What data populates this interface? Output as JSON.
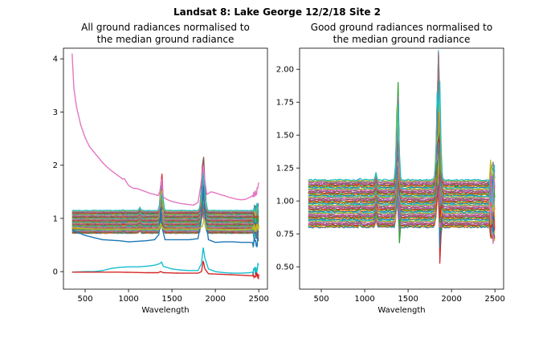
{
  "figure": {
    "suptitle": "Landsat 8: Lake George 12/2/18 Site 2"
  },
  "chart_data": [
    {
      "type": "line",
      "title_line1": "All ground radiances normalised to",
      "title_line2": "the median ground radiance",
      "xlabel": "Wavelength",
      "ylabel": "",
      "xlim": [
        250,
        2600
      ],
      "ylim": [
        -0.33,
        4.2
      ],
      "xticks": [
        500,
        1000,
        1500,
        2000,
        2500
      ],
      "yticks": [
        0,
        1,
        2,
        3,
        4
      ],
      "grid": false,
      "series_note_many_overlapping_spectra": true,
      "series": [
        {
          "color": "#e377c2",
          "x": [
            350,
            370,
            400,
            450,
            500,
            550,
            600,
            650,
            700,
            750,
            800,
            850,
            900,
            930,
            950,
            1000,
            1050,
            1100,
            1150,
            1200,
            1250,
            1300,
            1340,
            1360,
            1380,
            1400,
            1450,
            1500,
            1550,
            1600,
            1650,
            1700,
            1750,
            1800,
            1830,
            1860,
            1880,
            1900,
            1950,
            2000,
            2050,
            2100,
            2150,
            2200,
            2250,
            2300,
            2350,
            2400,
            2450,
            2480,
            2500
          ],
          "y": [
            4.1,
            3.45,
            3.1,
            2.75,
            2.52,
            2.35,
            2.25,
            2.15,
            2.05,
            1.97,
            1.9,
            1.84,
            1.78,
            1.74,
            1.75,
            1.62,
            1.57,
            1.56,
            1.53,
            1.5,
            1.47,
            1.45,
            1.43,
            1.5,
            1.75,
            1.4,
            1.35,
            1.32,
            1.3,
            1.28,
            1.27,
            1.26,
            1.25,
            1.3,
            1.6,
            2.0,
            1.7,
            1.45,
            1.5,
            1.48,
            1.45,
            1.43,
            1.4,
            1.38,
            1.36,
            1.35,
            1.36,
            1.4,
            1.45,
            1.5,
            1.66
          ]
        },
        {
          "color": "#1f77b4",
          "x": [
            350,
            500,
            700,
            900,
            1000,
            1100,
            1200,
            1300,
            1350,
            1370,
            1390,
            1420,
            1500,
            1600,
            1700,
            1800,
            1840,
            1860,
            1880,
            1920,
            2000,
            2100,
            2200,
            2300,
            2400,
            2450,
            2480,
            2500
          ],
          "y": [
            0.78,
            0.68,
            0.6,
            0.58,
            0.56,
            0.57,
            0.58,
            0.6,
            0.7,
            1.2,
            0.8,
            0.6,
            0.6,
            0.6,
            0.6,
            0.62,
            1.0,
            1.6,
            1.1,
            0.6,
            0.55,
            0.56,
            0.56,
            0.55,
            0.55,
            0.54,
            0.52,
            0.9
          ]
        },
        {
          "color": "#17becf",
          "x": [
            350,
            500,
            600,
            700,
            800,
            900,
            1000,
            1100,
            1200,
            1300,
            1360,
            1380,
            1400,
            1500,
            1600,
            1700,
            1800,
            1840,
            1860,
            1880,
            1920,
            2000,
            2100,
            2200,
            2300,
            2400,
            2450,
            2480,
            2500
          ],
          "y": [
            -0.01,
            0.0,
            0.0,
            0.02,
            0.06,
            0.08,
            0.09,
            0.09,
            0.1,
            0.12,
            0.15,
            0.18,
            0.1,
            0.05,
            0.03,
            0.02,
            0.02,
            0.15,
            0.45,
            0.25,
            0.05,
            0.0,
            -0.02,
            -0.03,
            -0.03,
            -0.02,
            0.0,
            0.05,
            0.12
          ]
        },
        {
          "color": "#d62728",
          "x": [
            350,
            600,
            900,
            1200,
            1340,
            1370,
            1400,
            1600,
            1800,
            1840,
            1860,
            1880,
            1920,
            2200,
            2450,
            2480,
            2500
          ],
          "y": [
            -0.01,
            -0.01,
            -0.01,
            -0.02,
            -0.02,
            0.0,
            -0.02,
            -0.03,
            -0.03,
            0.0,
            0.2,
            0.05,
            -0.04,
            -0.06,
            -0.08,
            -0.06,
            -0.1
          ]
        },
        {
          "color": "#bcbd22",
          "x": [
            350,
            600,
            900,
            1200,
            1350,
            1370,
            1400,
            1600,
            1800,
            1850,
            1870,
            1900,
            2200,
            2450,
            2500
          ],
          "y": [
            0.82,
            0.8,
            0.8,
            0.8,
            0.8,
            0.9,
            0.8,
            0.8,
            0.8,
            0.85,
            1.0,
            0.8,
            0.79,
            0.8,
            0.82
          ]
        }
      ],
      "band": {
        "color": "#2ca02c",
        "lower": 0.72,
        "upper": 1.15,
        "peak1_x": 1380,
        "peak1_y": 1.85,
        "peak2_x": 1860,
        "peak2_y": 2.1
      },
      "band_colors": [
        "#1f77b4",
        "#ff7f0e",
        "#2ca02c",
        "#d62728",
        "#9467bd",
        "#8c564b",
        "#e377c2",
        "#7f7f7f",
        "#bcbd22",
        "#17becf"
      ]
    },
    {
      "type": "line",
      "title_line1": "Good ground radiances normalised to",
      "title_line2": "the median ground radiance",
      "xlabel": "Wavelength",
      "ylabel": "",
      "xlim": [
        250,
        2600
      ],
      "ylim": [
        0.33,
        2.16
      ],
      "xticks": [
        500,
        1000,
        1500,
        2000,
        2500
      ],
      "yticks": [
        0.5,
        0.75,
        1.0,
        1.25,
        1.5,
        1.75,
        2.0
      ],
      "ytick_labels": [
        "0.50",
        "0.75",
        "1.00",
        "1.25",
        "1.50",
        "1.75",
        "2.00"
      ],
      "grid": false,
      "series_note_many_overlapping_spectra": true,
      "band": {
        "lower": 0.8,
        "upper": 1.16,
        "peak1_x": 1380,
        "peak1_y": 1.87,
        "peak2_x": 1850,
        "peak2_y": 2.08,
        "dip_y": 0.42
      },
      "band_colors": [
        "#1f77b4",
        "#ff7f0e",
        "#2ca02c",
        "#d62728",
        "#9467bd",
        "#8c564b",
        "#e377c2",
        "#7f7f7f",
        "#bcbd22",
        "#17becf"
      ]
    }
  ]
}
